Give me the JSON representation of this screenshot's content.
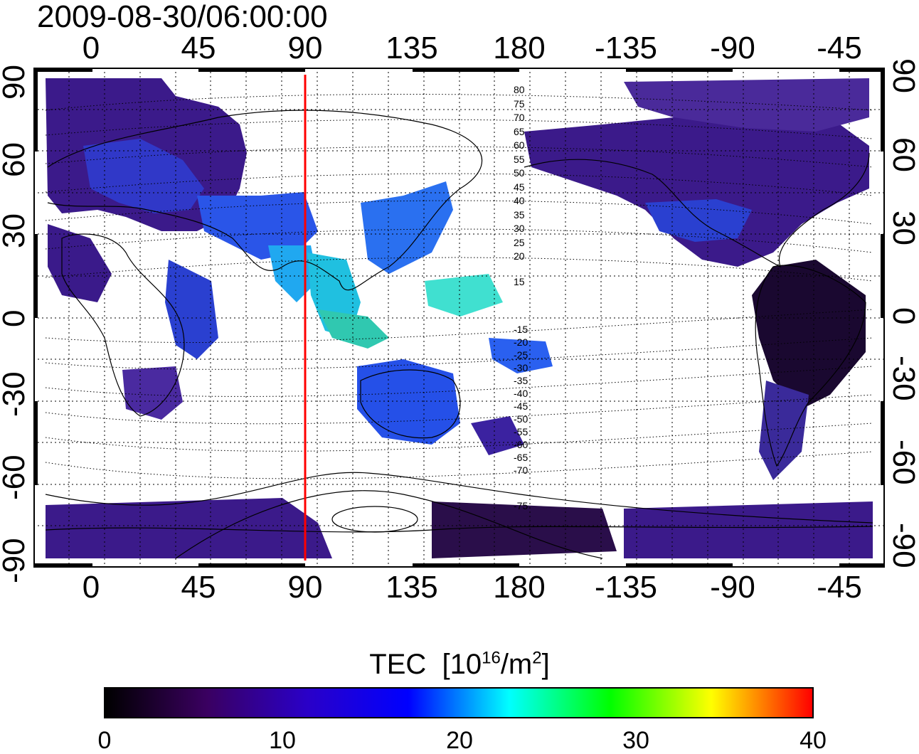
{
  "title": "2009-08-30/06:00:00",
  "lon_ticks_top": [
    "0",
    "45",
    "90",
    "135",
    "180",
    "-135",
    "-90",
    "-45"
  ],
  "lon_ticks_bottom": [
    "0",
    "45",
    "90",
    "135",
    "180",
    "-135",
    "-90",
    "-45"
  ],
  "lat_ticks_left": [
    "90",
    "60",
    "30",
    "0",
    "-30",
    "-60",
    "-90"
  ],
  "lat_ticks_right": [
    "90",
    "60",
    "30",
    "0",
    "-30",
    "-60",
    "-90"
  ],
  "magnetic_lat_labels": [
    "80",
    "75",
    "70",
    "65",
    "60",
    "55",
    "50",
    "45",
    "40",
    "35",
    "30",
    "25",
    "20",
    "15",
    "-15",
    "-20",
    "-25",
    "-30",
    "-35",
    "-40",
    "-45",
    "-50",
    "-55",
    "-60",
    "-65",
    "-70",
    "-75"
  ],
  "colorbar": {
    "label_main": "TEC",
    "label_unit": "[10",
    "label_exp": "16",
    "label_unit2": "/m",
    "label_exp2": "2",
    "label_close": "]",
    "ticks": [
      "0",
      "10",
      "20",
      "30",
      "40"
    ],
    "range": [
      0,
      40
    ],
    "colors": [
      "#000000",
      "#3a0060",
      "#2a00c8",
      "#0000ff",
      "#00ffff",
      "#00ff00",
      "#ffff00",
      "#ff0000"
    ]
  },
  "meridian_marker": {
    "longitude": 90,
    "color": "#ff0000"
  },
  "colors": {
    "frame": "#000000",
    "land": "#000000",
    "grid": "#000000"
  }
}
